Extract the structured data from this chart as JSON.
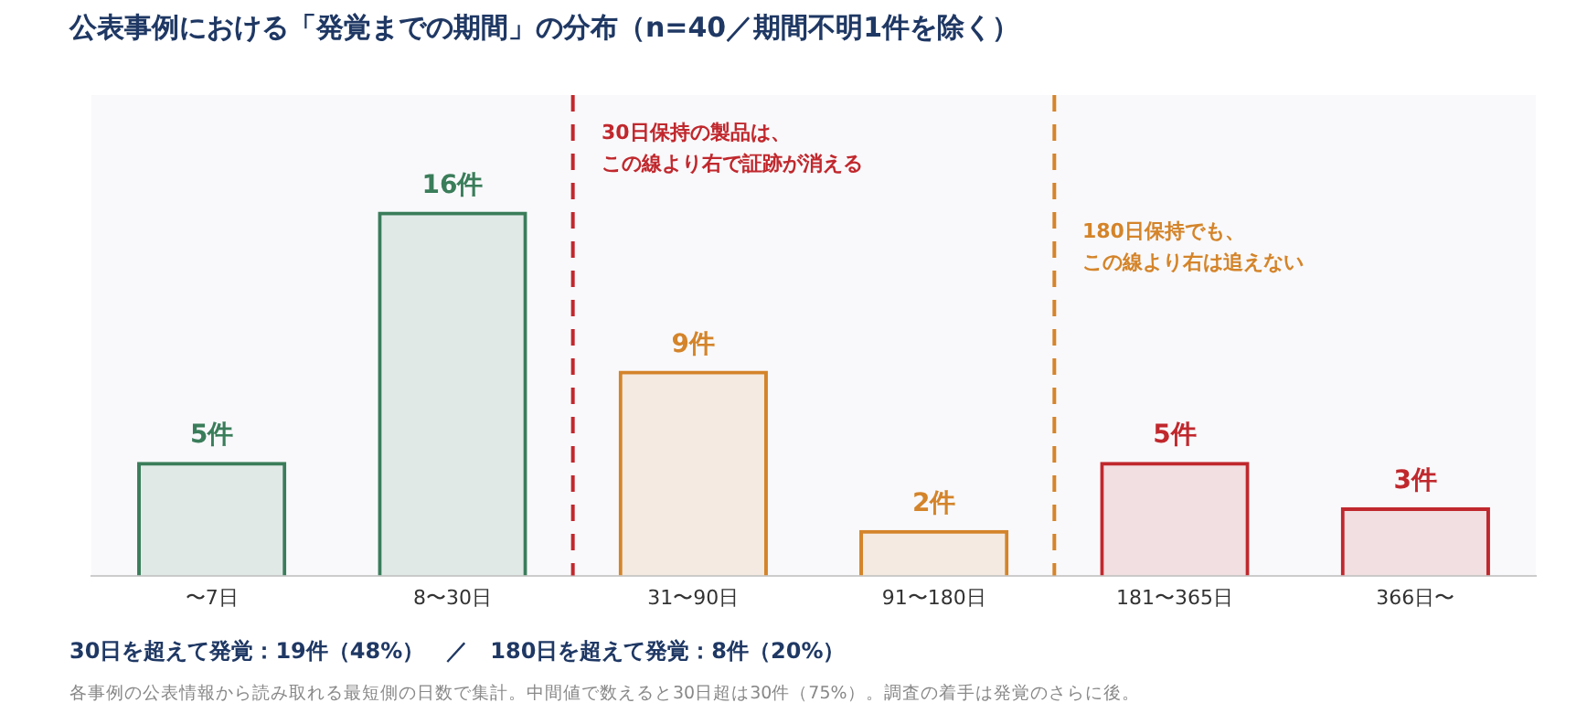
{
  "chart_data": {
    "type": "bar",
    "title": "公表事例における「発覚までの期間」の分布（n=40／期間不明1件を除く）",
    "categories": [
      "〜7日",
      "8〜30日",
      "31〜90日",
      "91〜180日",
      "181〜365日",
      "366日〜"
    ],
    "values": [
      5,
      16,
      9,
      2,
      5,
      3
    ],
    "value_labels": [
      "5件",
      "16件",
      "9件",
      "2件",
      "5件",
      "3件"
    ],
    "colors": [
      "#3a7d5a",
      "#3a7d5a",
      "#d4842a",
      "#d4842a",
      "#c0282d",
      "#c0282d"
    ],
    "ref_lines": [
      {
        "axis": "x",
        "value": "31〜90日",
        "label": "30日保持の製品は、この線より右で証跡が消える",
        "color": "#c0282d",
        "line_style": "dashed"
      },
      {
        "axis": "x",
        "value": "181〜365日",
        "label": "180日保持でも、この線より右は追えない",
        "color": "#d4842a",
        "line_style": "dashed"
      }
    ],
    "annotations": [
      "30日を超えて発覚：19件（48%）　／　180日を超えて発覚：8件（20%）",
      "各事例の公表情報から読み取れる最短側の日数で集計。中間値で数えると30日超は30件（75%）。調査の着手は発覚のさらに後。"
    ],
    "grid": false,
    "legend": false
  }
}
